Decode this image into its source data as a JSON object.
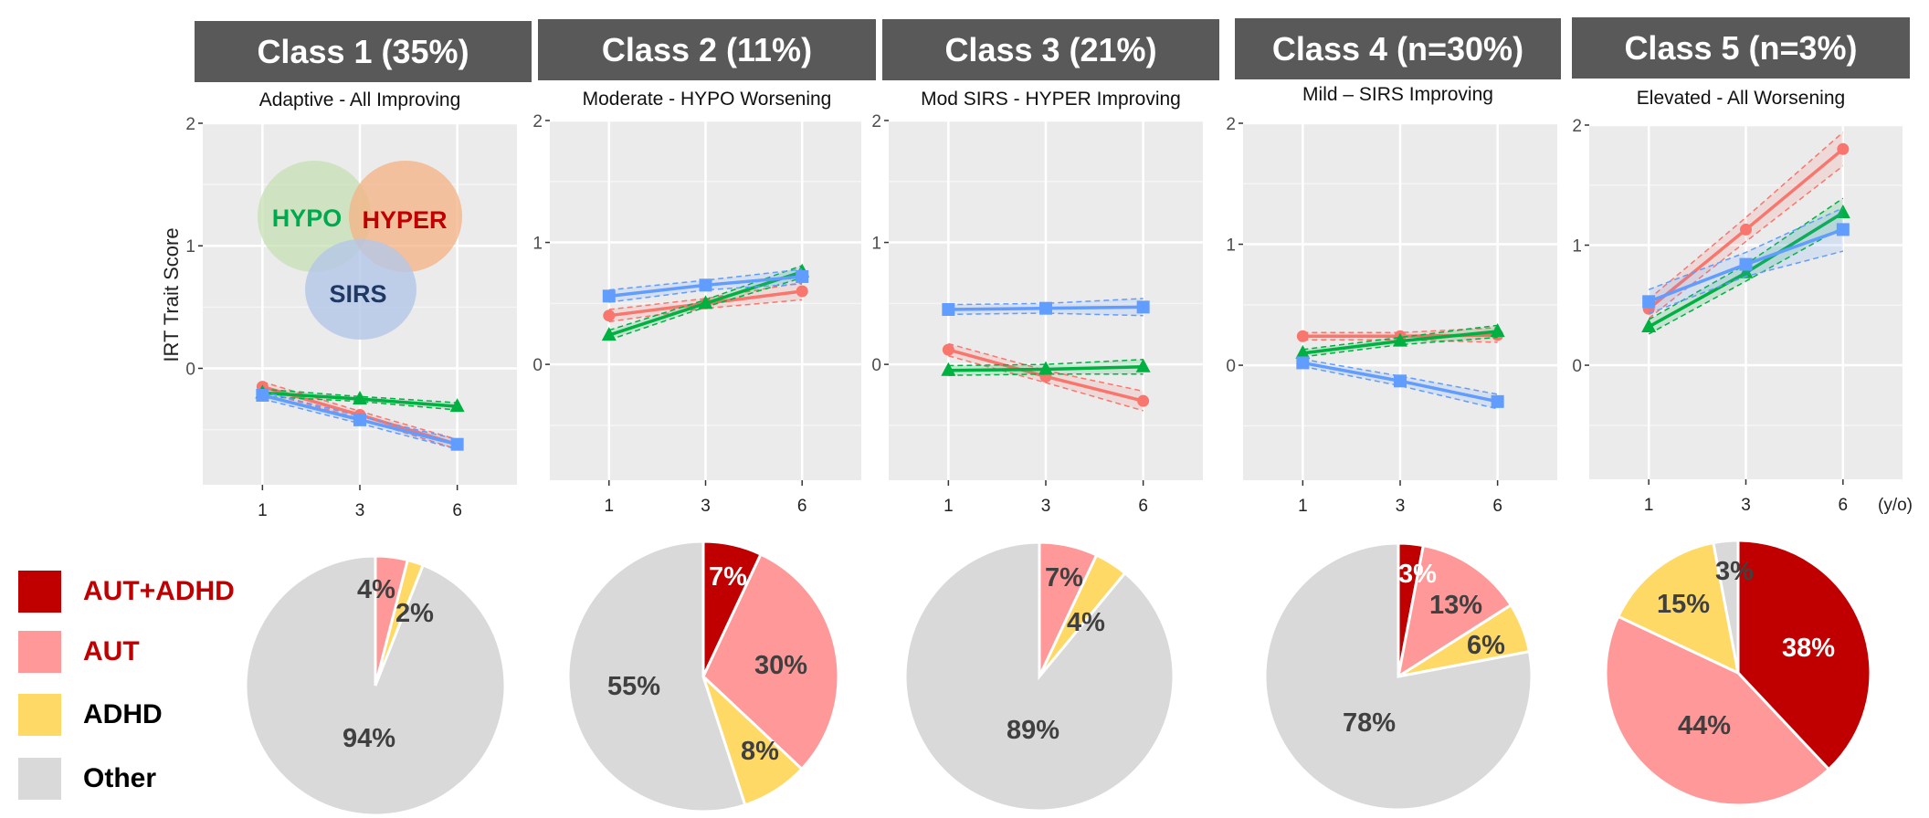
{
  "venn": {
    "hypo": "HYPO",
    "hyper": "HYPER",
    "sirs": "SIRS"
  },
  "legend": [
    {
      "label": "AUT+ADHD",
      "color": "#C00000",
      "text_color": "#C00000"
    },
    {
      "label": "AUT",
      "color": "#FF9999",
      "text_color": "#C00000"
    },
    {
      "label": "ADHD",
      "color": "#FFD966",
      "text_color": "#000000"
    },
    {
      "label": "Other",
      "color": "#D9D9D9",
      "text_color": "#000000"
    }
  ],
  "series_colors": {
    "HYPER": "#F8766D",
    "HYPO": "#00B040",
    "SIRS": "#619CFF"
  },
  "chart_data": [
    {
      "type": "line",
      "title": "Class 1 (35%)",
      "subtitle": "Adaptive - All Improving",
      "ylabel": "IRT Trait Score",
      "xlabel": "",
      "x": [
        "1",
        "3",
        "6"
      ],
      "ylim": [
        -0.95,
        2.0
      ],
      "yticks": [
        "0",
        "1",
        "2"
      ],
      "grid": true,
      "series": [
        {
          "name": "HYPER",
          "values": [
            -0.15,
            -0.38,
            -0.62
          ],
          "ci": [
            0.04,
            0.03,
            0.04
          ]
        },
        {
          "name": "HYPO",
          "values": [
            -0.2,
            -0.25,
            -0.31
          ],
          "ci": [
            0.03,
            0.02,
            0.03
          ]
        },
        {
          "name": "SIRS",
          "values": [
            -0.22,
            -0.42,
            -0.62
          ],
          "ci": [
            0.03,
            0.03,
            0.04
          ]
        }
      ]
    },
    {
      "type": "line",
      "title": "Class 2 (11%)",
      "subtitle": "Moderate - HYPO Worsening",
      "ylabel": "",
      "xlabel": "",
      "x": [
        "1",
        "3",
        "6"
      ],
      "ylim": [
        -0.95,
        2.0
      ],
      "yticks": [
        "0",
        "1",
        "2"
      ],
      "grid": true,
      "series": [
        {
          "name": "HYPER",
          "values": [
            0.4,
            0.5,
            0.6
          ],
          "ci": [
            0.05,
            0.04,
            0.07
          ]
        },
        {
          "name": "HYPO",
          "values": [
            0.24,
            0.5,
            0.76
          ],
          "ci": [
            0.04,
            0.03,
            0.05
          ]
        },
        {
          "name": "SIRS",
          "values": [
            0.56,
            0.65,
            0.72
          ],
          "ci": [
            0.05,
            0.04,
            0.06
          ]
        }
      ]
    },
    {
      "type": "line",
      "title": "Class 3 (21%)",
      "subtitle": "Mod SIRS - HYPER Improving",
      "ylabel": "",
      "xlabel": "",
      "x": [
        "1",
        "3",
        "6"
      ],
      "ylim": [
        -0.95,
        2.0
      ],
      "yticks": [
        "0",
        "1",
        "2"
      ],
      "grid": true,
      "series": [
        {
          "name": "HYPER",
          "values": [
            0.12,
            -0.1,
            -0.3
          ],
          "ci": [
            0.05,
            0.05,
            0.08
          ]
        },
        {
          "name": "HYPO",
          "values": [
            -0.05,
            -0.04,
            -0.02
          ],
          "ci": [
            0.04,
            0.04,
            0.06
          ]
        },
        {
          "name": "SIRS",
          "values": [
            0.45,
            0.46,
            0.47
          ],
          "ci": [
            0.04,
            0.04,
            0.07
          ]
        }
      ]
    },
    {
      "type": "line",
      "title": "Class 4 (n=30%)",
      "subtitle": "Mild – SIRS Improving",
      "ylabel": "",
      "xlabel": "",
      "x": [
        "1",
        "3",
        "6"
      ],
      "ylim": [
        -0.95,
        2.0
      ],
      "yticks": [
        "0",
        "1",
        "2"
      ],
      "grid": true,
      "series": [
        {
          "name": "HYPER",
          "values": [
            0.24,
            0.24,
            0.25
          ],
          "ci": [
            0.03,
            0.03,
            0.06
          ]
        },
        {
          "name": "HYPO",
          "values": [
            0.1,
            0.2,
            0.28
          ],
          "ci": [
            0.03,
            0.03,
            0.05
          ]
        },
        {
          "name": "SIRS",
          "values": [
            0.02,
            -0.13,
            -0.3
          ],
          "ci": [
            0.03,
            0.04,
            0.06
          ]
        }
      ]
    },
    {
      "type": "line",
      "title": "Class 5 (n=3%)",
      "subtitle": "Elevated - All Worsening",
      "ylabel": "",
      "xlabel": "(y/o)",
      "x": [
        "1",
        "3",
        "6"
      ],
      "ylim": [
        -0.95,
        2.0
      ],
      "yticks": [
        "0",
        "1",
        "2"
      ],
      "grid": true,
      "series": [
        {
          "name": "HYPER",
          "values": [
            0.47,
            1.13,
            1.8
          ],
          "ci": [
            0.08,
            0.1,
            0.14
          ]
        },
        {
          "name": "HYPO",
          "values": [
            0.32,
            0.77,
            1.27
          ],
          "ci": [
            0.06,
            0.07,
            0.12
          ]
        },
        {
          "name": "SIRS",
          "values": [
            0.53,
            0.84,
            1.13
          ],
          "ci": [
            0.1,
            0.1,
            0.18
          ]
        }
      ]
    },
    {
      "type": "pie",
      "title": "Class 1 (35%)",
      "categories": [
        "AUT+ADHD",
        "AUT",
        "ADHD",
        "Other"
      ],
      "values": [
        0,
        4,
        2,
        94
      ],
      "labels": [
        "",
        "4%",
        "2%",
        "94%"
      ]
    },
    {
      "type": "pie",
      "title": "Class 2 (11%)",
      "categories": [
        "AUT+ADHD",
        "AUT",
        "ADHD",
        "Other"
      ],
      "values": [
        7,
        30,
        8,
        55
      ],
      "labels": [
        "7%",
        "30%",
        "8%",
        "55%"
      ]
    },
    {
      "type": "pie",
      "title": "Class 3 (21%)",
      "categories": [
        "AUT+ADHD",
        "AUT",
        "ADHD",
        "Other"
      ],
      "values": [
        0,
        7,
        4,
        89
      ],
      "labels": [
        "",
        "7%",
        "4%",
        "89%"
      ]
    },
    {
      "type": "pie",
      "title": "Class 4 (n=30%)",
      "categories": [
        "AUT+ADHD",
        "AUT",
        "ADHD",
        "Other"
      ],
      "values": [
        3,
        13,
        6,
        78
      ],
      "labels": [
        "3%",
        "13%",
        "6%",
        "78%"
      ]
    },
    {
      "type": "pie",
      "title": "Class 5 (n=3%)",
      "categories": [
        "AUT+ADHD",
        "AUT",
        "ADHD",
        "Other"
      ],
      "values": [
        38,
        44,
        15,
        3
      ],
      "labels": [
        "38%",
        "44%",
        "15%",
        "3%"
      ]
    }
  ]
}
